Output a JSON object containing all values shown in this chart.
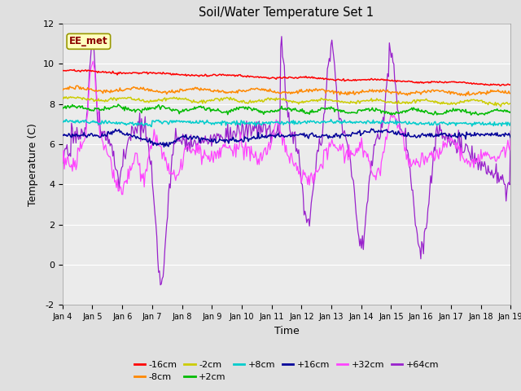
{
  "title": "Soil/Water Temperature Set 1",
  "xlabel": "Time",
  "ylabel": "Temperature (C)",
  "ylim": [
    -2,
    12
  ],
  "yticks": [
    -2,
    0,
    2,
    4,
    6,
    8,
    10,
    12
  ],
  "xlim": [
    0,
    15
  ],
  "xtick_labels": [
    "Jan 4",
    "Jan 5",
    "Jan 6",
    "Jan 7",
    "Jan 8",
    "Jan 9",
    "Jan 10",
    "Jan 11",
    "Jan 12",
    "Jan 13",
    "Jan 14",
    "Jan 15",
    "Jan 16",
    "Jan 17",
    "Jan 18",
    "Jan 19"
  ],
  "annotation": "EE_met",
  "annotation_color": "#8B0000",
  "annotation_bg": "#FFFFC0",
  "annotation_edge": "#999900",
  "series_colors": {
    "-16cm": "#FF0000",
    "-8cm": "#FF8800",
    "-2cm": "#CCCC00",
    "+2cm": "#00BB00",
    "+8cm": "#00CCCC",
    "+16cm": "#000099",
    "+32cm": "#FF44FF",
    "+64cm": "#9922CC"
  },
  "bg_color": "#E0E0E0",
  "plot_bg": "#EBEBEB",
  "grid_color": "#FFFFFF",
  "figsize": [
    6.4,
    4.8
  ],
  "dpi": 100
}
